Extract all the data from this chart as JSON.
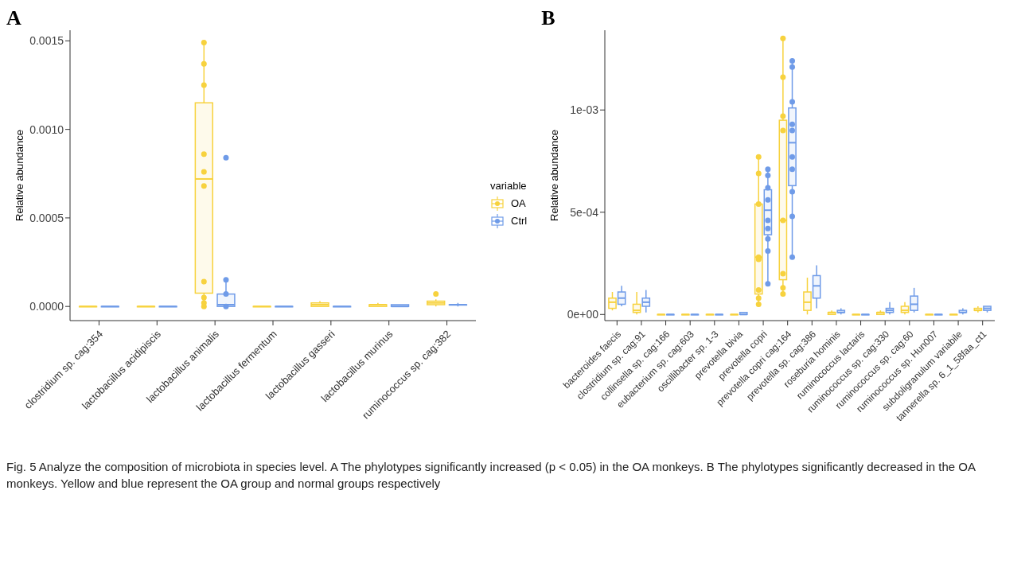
{
  "chart_data": [
    {
      "type": "box",
      "title": "A",
      "ylabel": "Relative abundance",
      "legend_title": "variable",
      "legend": "right",
      "marker": "circle",
      "categories": [
        "clostridium sp. cag:354",
        "lactobacillus acidipiscis",
        "lactobacillus animalis",
        "lactobacillus fermentum",
        "lactobacillus gasseri",
        "lactobacillus murinus",
        "ruminococcus sp. cag:382"
      ],
      "ylim": [
        -8e-05,
        0.00156
      ],
      "yticks": [
        {
          "value": 0,
          "label": "0.0000"
        },
        {
          "value": 0.0005,
          "label": "0.0005"
        },
        {
          "value": 0.001,
          "label": "0.0010"
        },
        {
          "value": 0.0015,
          "label": "0.0015"
        }
      ],
      "series": [
        {
          "name": "OA",
          "color": "#f7d23e",
          "boxes": [
            {
              "low": 0,
              "q1": 0,
              "median": 0,
              "q3": 0,
              "high": 0
            },
            {
              "low": 0,
              "q1": 0,
              "median": 0,
              "q3": 0,
              "high": 0
            },
            {
              "low": 0,
              "q1": 7.5e-05,
              "median": 0.00072,
              "q3": 0.00115,
              "high": 0.00149
            },
            {
              "low": 0,
              "q1": 0,
              "median": 0,
              "q3": 0,
              "high": 0
            },
            {
              "low": 0,
              "q1": 0,
              "median": 1e-05,
              "q3": 2e-05,
              "high": 3e-05
            },
            {
              "low": 0,
              "q1": 0,
              "median": 1e-05,
              "q3": 1e-05,
              "high": 2e-05
            },
            {
              "low": 0,
              "q1": 1e-05,
              "median": 2e-05,
              "q3": 3e-05,
              "high": 4e-05
            }
          ]
        },
        {
          "name": "Ctrl",
          "color": "#6f9be8",
          "boxes": [
            {
              "low": 0,
              "q1": 0,
              "median": 0,
              "q3": 0,
              "high": 0
            },
            {
              "low": 0,
              "q1": 0,
              "median": 0,
              "q3": 0,
              "high": 0
            },
            {
              "low": 0,
              "q1": 0,
              "median": 1e-05,
              "q3": 7e-05,
              "high": 0.00015
            },
            {
              "low": 0,
              "q1": 0,
              "median": 0,
              "q3": 0,
              "high": 0
            },
            {
              "low": 0,
              "q1": 0,
              "median": 0,
              "q3": 0,
              "high": 0
            },
            {
              "low": 0,
              "q1": 0,
              "median": 0,
              "q3": 1e-05,
              "high": 1e-05
            },
            {
              "low": 0,
              "q1": 1e-05,
              "median": 1e-05,
              "q3": 1e-05,
              "high": 2e-05
            }
          ]
        },
        {
          "type": "scatter",
          "color": "#f7d23e",
          "x": [
            "lactobacillus animalis",
            "lactobacillus animalis",
            "lactobacillus animalis",
            "lactobacillus animalis",
            "lactobacillus animalis",
            "lactobacillus animalis",
            "lactobacillus animalis",
            "lactobacillus animalis",
            "lactobacillus animalis",
            "lactobacillus animalis",
            "ruminococcus sp. cag:382"
          ],
          "values": [
            0.00149,
            0.00137,
            0.00125,
            0.00086,
            0.00076,
            0.00068,
            0.00014,
            5e-05,
            2e-05,
            0,
            7e-05
          ]
        },
        {
          "type": "scatter",
          "color": "#6f9be8",
          "x": [
            "lactobacillus animalis",
            "lactobacillus animalis",
            "lactobacillus animalis",
            "lactobacillus animalis"
          ],
          "values": [
            0.00084,
            0.00015,
            7e-05,
            0
          ]
        }
      ],
      "annotations": [
        "Fig. 5  Analyze the composition of microbiota in species level. A The phylotypes significantly increased (p < 0.05) in the OA monkeys. B The phylotypes significantly decreased in the OA monkeys. Yellow and blue represent the OA group and normal groups respectively"
      ]
    },
    {
      "type": "box",
      "title": "B",
      "ylabel": "Relative abundance",
      "marker": "circle",
      "categories": [
        "bacteroides faecis",
        "clostridium sp. cag:91",
        "collinsella sp. cag:166",
        "eubacterium sp. cag:603",
        "oscillibacter sp. 1-3",
        "prevotella bivia",
        "prevotella copri",
        "prevotella copri cag:164",
        "prevotella sp. cag:386",
        "roseburia hominis",
        "ruminococcus lactaris",
        "ruminococcus sp. cag:330",
        "ruminococcus sp. cag:60",
        "ruminococcus sp. Hun007",
        "subdoligranulum variabile",
        "tannerella sp. 6_1_58faa_ct1"
      ],
      "ylim": [
        -3e-05,
        0.00139
      ],
      "yticks": [
        {
          "value": 0,
          "label": "0e+00"
        },
        {
          "value": 0.0005,
          "label": "5e-04"
        },
        {
          "value": 0.001,
          "label": "1e-03"
        }
      ],
      "series": [
        {
          "color": "#f7d23e",
          "boxes": [
            {
              "low": 2e-05,
              "q1": 3e-05,
              "median": 6e-05,
              "q3": 8e-05,
              "high": 0.00011
            },
            {
              "low": 0,
              "q1": 1e-05,
              "median": 2e-05,
              "q3": 5e-05,
              "high": 0.00011
            },
            {
              "low": 0,
              "q1": 0,
              "median": 0,
              "q3": 0,
              "high": 0
            },
            {
              "low": 0,
              "q1": 0,
              "median": 0,
              "q3": 0,
              "high": 0
            },
            {
              "low": 0,
              "q1": 0,
              "median": 0,
              "q3": 0,
              "high": 0
            },
            {
              "low": 0,
              "q1": 0,
              "median": 0,
              "q3": 0,
              "high": 0
            },
            {
              "low": 5e-05,
              "q1": 0.0001,
              "median": 0.00028,
              "q3": 0.00054,
              "high": 0.00077
            },
            {
              "low": 0.0001,
              "q1": 0.00017,
              "median": 0.00046,
              "q3": 0.00095,
              "high": 0.00135
            },
            {
              "low": 0,
              "q1": 2e-05,
              "median": 6e-05,
              "q3": 0.00011,
              "high": 0.00018
            },
            {
              "low": 0,
              "q1": 0,
              "median": 1e-05,
              "q3": 1e-05,
              "high": 2e-05
            },
            {
              "low": 0,
              "q1": 0,
              "median": 0,
              "q3": 0,
              "high": 0
            },
            {
              "low": 0,
              "q1": 0,
              "median": 1e-05,
              "q3": 1e-05,
              "high": 2e-05
            },
            {
              "low": 0,
              "q1": 1e-05,
              "median": 2e-05,
              "q3": 4e-05,
              "high": 6e-05
            },
            {
              "low": 0,
              "q1": 0,
              "median": 0,
              "q3": 0,
              "high": 0
            },
            {
              "low": 0,
              "q1": 0,
              "median": 0,
              "q3": 0,
              "high": 0
            },
            {
              "low": 1e-05,
              "q1": 2e-05,
              "median": 2e-05,
              "q3": 3e-05,
              "high": 4e-05
            }
          ]
        },
        {
          "color": "#6f9be8",
          "boxes": [
            {
              "low": 4e-05,
              "q1": 5e-05,
              "median": 8e-05,
              "q3": 0.00011,
              "high": 0.00014
            },
            {
              "low": 1e-05,
              "q1": 4e-05,
              "median": 6e-05,
              "q3": 8e-05,
              "high": 0.00012
            },
            {
              "low": 0,
              "q1": 0,
              "median": 0,
              "q3": 0,
              "high": 0
            },
            {
              "low": 0,
              "q1": 0,
              "median": 0,
              "q3": 0,
              "high": 0
            },
            {
              "low": 0,
              "q1": 0,
              "median": 0,
              "q3": 0,
              "high": 0
            },
            {
              "low": 0,
              "q1": 0,
              "median": 0,
              "q3": 1e-05,
              "high": 1e-05
            },
            {
              "low": 0.00015,
              "q1": 0.00039,
              "median": 0.00051,
              "q3": 0.00061,
              "high": 0.00071
            },
            {
              "low": 0.00028,
              "q1": 0.00063,
              "median": 0.00084,
              "q3": 0.00101,
              "high": 0.00124
            },
            {
              "low": 3e-05,
              "q1": 8e-05,
              "median": 0.00014,
              "q3": 0.00019,
              "high": 0.00024
            },
            {
              "low": 0,
              "q1": 1e-05,
              "median": 1e-05,
              "q3": 2e-05,
              "high": 3e-05
            },
            {
              "low": 0,
              "q1": 0,
              "median": 0,
              "q3": 0,
              "high": 0
            },
            {
              "low": 0,
              "q1": 1e-05,
              "median": 2e-05,
              "q3": 3e-05,
              "high": 6e-05
            },
            {
              "low": 1e-05,
              "q1": 2e-05,
              "median": 5e-05,
              "q3": 9e-05,
              "high": 0.00013
            },
            {
              "low": 0,
              "q1": 0,
              "median": 0,
              "q3": 0,
              "high": 0
            },
            {
              "low": 0,
              "q1": 1e-05,
              "median": 1e-05,
              "q3": 2e-05,
              "high": 3e-05
            },
            {
              "low": 1e-05,
              "q1": 2e-05,
              "median": 3e-05,
              "q3": 4e-05,
              "high": 4e-05
            }
          ]
        },
        {
          "type": "scatter",
          "color": "#f7d23e",
          "x": [
            "prevotella copri",
            "prevotella copri",
            "prevotella copri",
            "prevotella copri",
            "prevotella copri",
            "prevotella copri",
            "prevotella copri",
            "prevotella copri",
            "prevotella copri cag:164",
            "prevotella copri cag:164",
            "prevotella copri cag:164",
            "prevotella copri cag:164",
            "prevotella copri cag:164",
            "prevotella copri cag:164",
            "prevotella copri cag:164",
            "prevotella copri cag:164"
          ],
          "values": [
            0.00077,
            0.00069,
            0.00054,
            0.00028,
            0.00027,
            0.00012,
            8e-05,
            5e-05,
            0.00135,
            0.00116,
            0.00097,
            0.0009,
            0.00046,
            0.0002,
            0.00013,
            0.0001
          ]
        },
        {
          "type": "scatter",
          "color": "#6f9be8",
          "x": [
            "prevotella copri",
            "prevotella copri",
            "prevotella copri",
            "prevotella copri",
            "prevotella copri",
            "prevotella copri",
            "prevotella copri",
            "prevotella copri",
            "prevotella copri",
            "prevotella copri cag:164",
            "prevotella copri cag:164",
            "prevotella copri cag:164",
            "prevotella copri cag:164",
            "prevotella copri cag:164",
            "prevotella copri cag:164",
            "prevotella copri cag:164",
            "prevotella copri cag:164",
            "prevotella copri cag:164",
            "prevotella copri cag:164"
          ],
          "values": [
            0.00071,
            0.00068,
            0.00062,
            0.00056,
            0.00046,
            0.00042,
            0.00037,
            0.00031,
            0.00015,
            0.00124,
            0.00121,
            0.00104,
            0.00093,
            0.0009,
            0.00077,
            0.00071,
            0.0006,
            0.00048,
            0.00028
          ]
        }
      ]
    }
  ]
}
